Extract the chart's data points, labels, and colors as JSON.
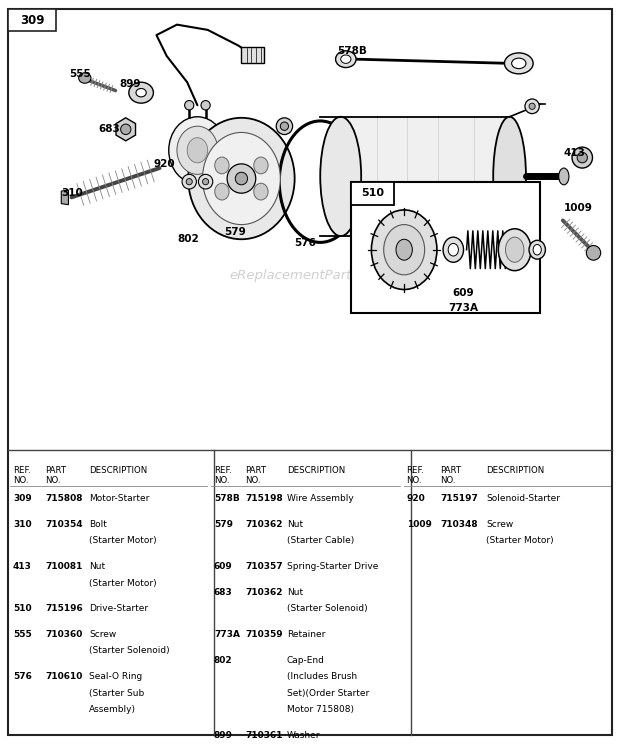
{
  "bg_color": "#ffffff",
  "watermark": "eReplacementParts.com",
  "parts_col1": [
    {
      "ref": "309",
      "part": "715808",
      "desc": "Motor-Starter"
    },
    {
      "ref": "310",
      "part": "710354",
      "desc": "Bolt\n(Starter Motor)"
    },
    {
      "ref": "413",
      "part": "710081",
      "desc": "Nut\n(Starter Motor)"
    },
    {
      "ref": "510",
      "part": "715196",
      "desc": "Drive-Starter"
    },
    {
      "ref": "555",
      "part": "710360",
      "desc": "Screw\n(Starter Solenoid)"
    },
    {
      "ref": "576",
      "part": "710610",
      "desc": "Seal-O Ring\n(Starter Sub\nAssembly)"
    }
  ],
  "parts_col2": [
    {
      "ref": "578B",
      "part": "715198",
      "desc": "Wire Assembly"
    },
    {
      "ref": "579",
      "part": "710362",
      "desc": "Nut\n(Starter Cable)"
    },
    {
      "ref": "609",
      "part": "710357",
      "desc": "Spring-Starter Drive"
    },
    {
      "ref": "683",
      "part": "710362",
      "desc": "Nut\n(Starter Solenoid)"
    },
    {
      "ref": "773A",
      "part": "710359",
      "desc": "Retainer"
    },
    {
      "ref": "802",
      "part": "",
      "desc": "Cap-End\n(Includes Brush\nSet)(Order Starter\nMotor 715808)"
    },
    {
      "ref": "899",
      "part": "710361",
      "desc": "Washer\n(Starter Solenoid)"
    }
  ],
  "parts_col3": [
    {
      "ref": "920",
      "part": "715197",
      "desc": "Solenoid-Starter"
    },
    {
      "ref": "1009",
      "part": "710348",
      "desc": "Screw\n(Starter Motor)"
    }
  ]
}
